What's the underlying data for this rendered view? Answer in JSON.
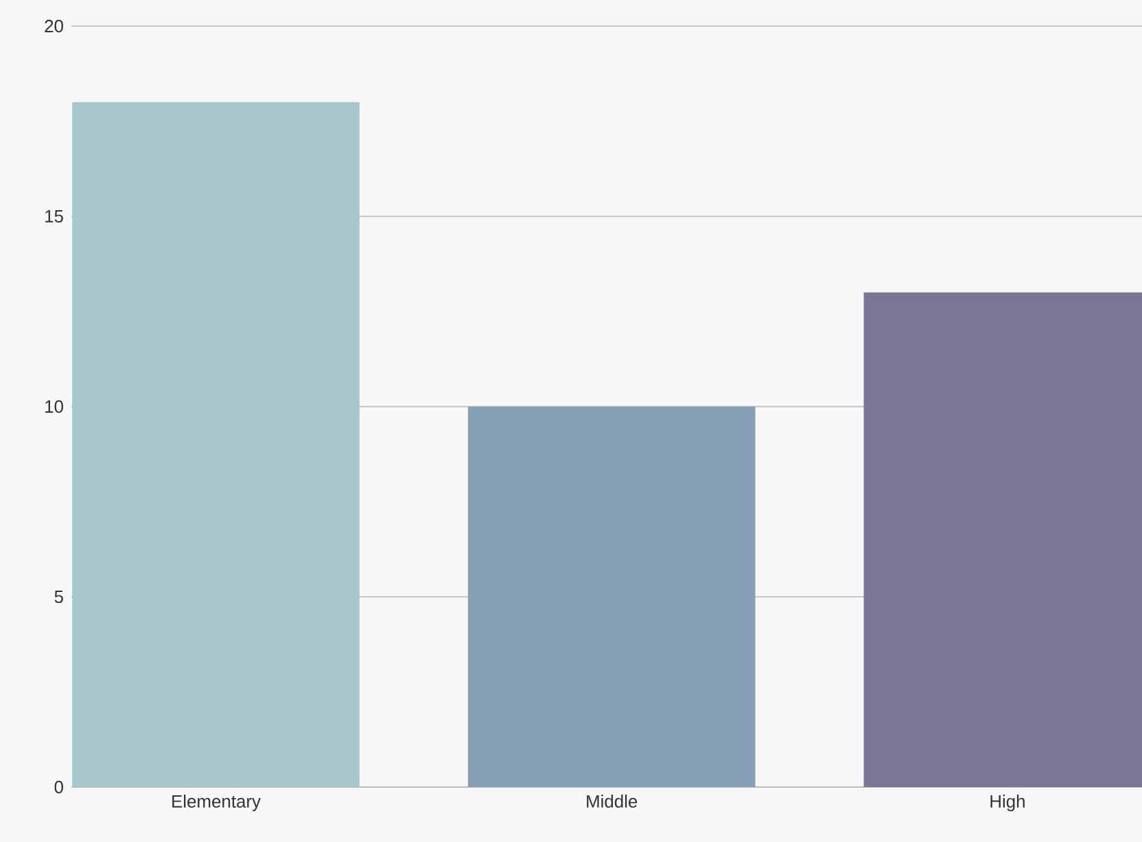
{
  "chart_data": {
    "type": "bar",
    "categories": [
      "Elementary",
      "Middle",
      "High"
    ],
    "values": [
      18,
      10,
      13
    ],
    "colors": [
      "#a7c7cd",
      "#869fb5",
      "#7b7596"
    ],
    "ylim": [
      0,
      20
    ],
    "yticks": [
      0,
      5,
      10,
      15,
      20
    ],
    "grid": "y"
  }
}
